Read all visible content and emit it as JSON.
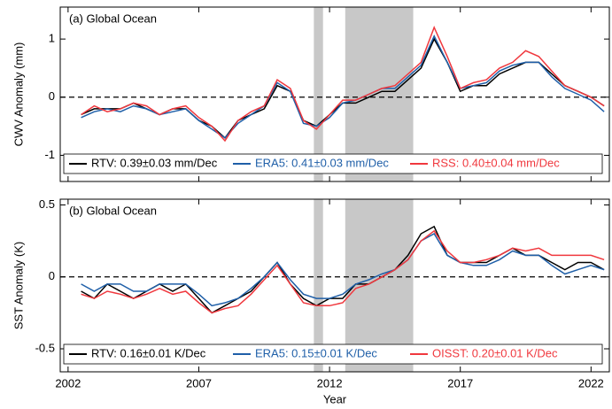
{
  "chart_data": [
    {
      "type": "line",
      "title": "(a) Global Ocean",
      "y_label": "CWV Anomaly (mm)",
      "xlim": [
        2001.7,
        2022.7
      ],
      "ylim": [
        -1.45,
        1.55
      ],
      "xticks": [
        2002,
        2007,
        2012,
        2017,
        2022
      ],
      "yticks": [
        -1,
        0,
        1
      ],
      "shaded": [
        [
          2011.4,
          2011.75
        ],
        [
          2012.6,
          2015.2
        ]
      ],
      "zero_line": true,
      "legend": "bottom",
      "x": [
        2002.5,
        2003,
        2003.5,
        2004,
        2004.5,
        2005,
        2005.5,
        2006,
        2006.5,
        2007,
        2007.5,
        2008,
        2008.5,
        2009,
        2009.5,
        2010,
        2010.5,
        2011,
        2011.5,
        2012,
        2012.5,
        2013,
        2013.5,
        2014,
        2014.5,
        2015,
        2015.5,
        2016,
        2016.5,
        2017,
        2017.5,
        2018,
        2018.5,
        2019,
        2019.5,
        2020,
        2020.5,
        2021,
        2021.5,
        2022,
        2022.5
      ],
      "series": [
        {
          "name": "RTV: 0.39±0.03 mm/Dec",
          "color": "#000000",
          "values": [
            -0.3,
            -0.2,
            -0.2,
            -0.2,
            -0.1,
            -0.2,
            -0.3,
            -0.2,
            -0.2,
            -0.4,
            -0.5,
            -0.7,
            -0.4,
            -0.3,
            -0.2,
            0.2,
            0.1,
            -0.4,
            -0.5,
            -0.3,
            -0.1,
            -0.1,
            0.0,
            0.1,
            0.1,
            0.3,
            0.5,
            1.0,
            0.6,
            0.1,
            0.2,
            0.2,
            0.4,
            0.5,
            0.6,
            0.6,
            0.4,
            0.2,
            0.1,
            0.0,
            -0.15
          ]
        },
        {
          "name": "ERA5: 0.41±0.03 mm/Dec",
          "color": "#1f5fa8",
          "values": [
            -0.35,
            -0.25,
            -0.2,
            -0.25,
            -0.15,
            -0.2,
            -0.3,
            -0.25,
            -0.2,
            -0.4,
            -0.55,
            -0.7,
            -0.45,
            -0.3,
            -0.15,
            0.25,
            0.1,
            -0.45,
            -0.5,
            -0.35,
            -0.1,
            -0.05,
            0.05,
            0.15,
            0.15,
            0.35,
            0.55,
            1.05,
            0.6,
            0.15,
            0.2,
            0.25,
            0.45,
            0.55,
            0.6,
            0.6,
            0.35,
            0.15,
            0.05,
            -0.05,
            -0.25
          ]
        },
        {
          "name": "RSS: 0.40±0.04 mm/Dec",
          "color": "#f0383e",
          "values": [
            -0.3,
            -0.15,
            -0.25,
            -0.2,
            -0.1,
            -0.15,
            -0.3,
            -0.2,
            -0.15,
            -0.35,
            -0.5,
            -0.75,
            -0.4,
            -0.25,
            -0.15,
            0.3,
            0.15,
            -0.4,
            -0.55,
            -0.3,
            -0.05,
            -0.05,
            0.05,
            0.15,
            0.2,
            0.4,
            0.6,
            1.2,
            0.7,
            0.15,
            0.25,
            0.3,
            0.5,
            0.6,
            0.8,
            0.7,
            0.45,
            0.2,
            0.1,
            0.0,
            -0.15
          ]
        }
      ]
    },
    {
      "type": "line",
      "title": "(b) Global Ocean",
      "y_label": "SST Anomaly (K)",
      "x_label": "Year",
      "xlim": [
        2001.7,
        2022.7
      ],
      "ylim": [
        -0.66,
        0.54
      ],
      "xticks": [
        2002,
        2007,
        2012,
        2017,
        2022
      ],
      "yticks": [
        -0.5,
        0,
        0.5
      ],
      "shaded": [
        [
          2011.4,
          2011.75
        ],
        [
          2012.6,
          2015.2
        ]
      ],
      "zero_line": true,
      "legend": "bottom",
      "x": [
        2002.5,
        2003,
        2003.5,
        2004,
        2004.5,
        2005,
        2005.5,
        2006,
        2006.5,
        2007,
        2007.5,
        2008,
        2008.5,
        2009,
        2009.5,
        2010,
        2010.5,
        2011,
        2011.5,
        2012,
        2012.5,
        2013,
        2013.5,
        2014,
        2014.5,
        2015,
        2015.5,
        2016,
        2016.5,
        2017,
        2017.5,
        2018,
        2018.5,
        2019,
        2019.5,
        2020,
        2020.5,
        2021,
        2021.5,
        2022,
        2022.5
      ],
      "series": [
        {
          "name": "RTV: 0.16±0.01 K/Dec",
          "color": "#000000",
          "values": [
            -0.1,
            -0.15,
            -0.05,
            -0.1,
            -0.15,
            -0.1,
            -0.05,
            -0.1,
            -0.05,
            -0.15,
            -0.25,
            -0.2,
            -0.15,
            -0.1,
            0.0,
            0.1,
            -0.05,
            -0.15,
            -0.2,
            -0.15,
            -0.15,
            -0.05,
            -0.05,
            0.0,
            0.05,
            0.15,
            0.3,
            0.35,
            0.15,
            0.1,
            0.1,
            0.1,
            0.15,
            0.2,
            0.15,
            0.15,
            0.1,
            0.05,
            0.1,
            0.1,
            0.05
          ]
        },
        {
          "name": "ERA5: 0.15±0.01 K/Dec",
          "color": "#1f5fa8",
          "values": [
            -0.05,
            -0.1,
            -0.05,
            -0.05,
            -0.1,
            -0.1,
            -0.05,
            -0.05,
            -0.05,
            -0.12,
            -0.2,
            -0.18,
            -0.15,
            -0.08,
            0.0,
            0.1,
            -0.02,
            -0.12,
            -0.15,
            -0.15,
            -0.12,
            -0.05,
            -0.02,
            0.02,
            0.05,
            0.12,
            0.25,
            0.3,
            0.15,
            0.1,
            0.08,
            0.08,
            0.12,
            0.18,
            0.15,
            0.15,
            0.08,
            0.02,
            0.05,
            0.08,
            0.05
          ]
        },
        {
          "name": "OISST: 0.20±0.01 K/Dec",
          "color": "#f0383e",
          "values": [
            -0.12,
            -0.15,
            -0.1,
            -0.12,
            -0.15,
            -0.12,
            -0.08,
            -0.12,
            -0.1,
            -0.18,
            -0.25,
            -0.22,
            -0.2,
            -0.12,
            -0.02,
            0.08,
            -0.05,
            -0.18,
            -0.2,
            -0.2,
            -0.18,
            -0.08,
            -0.05,
            0.0,
            0.05,
            0.12,
            0.25,
            0.32,
            0.18,
            0.1,
            0.1,
            0.12,
            0.15,
            0.2,
            0.18,
            0.2,
            0.15,
            0.15,
            0.15,
            0.15,
            0.12
          ]
        }
      ]
    }
  ]
}
